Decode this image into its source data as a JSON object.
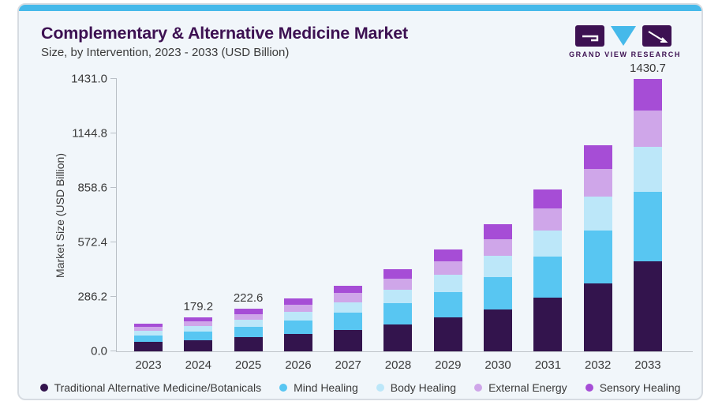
{
  "header": {
    "title": "Complementary & Alternative Medicine Market",
    "subtitle": "Size, by Intervention, 2023 - 2033 (USD Billion)",
    "logo_text": "GRAND VIEW RESEARCH"
  },
  "colors": {
    "accent_blue": "#45b9ea",
    "title_purple": "#3d1152",
    "card_background": "#f1f6fa",
    "card_border": "#d7dce2",
    "axis_line": "#b9bfc6",
    "text_gray": "#3a3a3a"
  },
  "chart_data": {
    "type": "bar",
    "stacked": true,
    "title": "Complementary & Alternative Medicine Market",
    "subtitle": "Size, by Intervention, 2023 - 2033 (USD Billion)",
    "xlabel": "",
    "ylabel": "Market Size (USD Billion)",
    "ylim": [
      0,
      1431
    ],
    "yticks": [
      0,
      286.2,
      572.4,
      858.6,
      1144.8,
      1431
    ],
    "grid": false,
    "legend_position": "bottom",
    "categories": [
      "2023",
      "2024",
      "2025",
      "2026",
      "2027",
      "2028",
      "2029",
      "2030",
      "2031",
      "2032",
      "2033"
    ],
    "totals": [
      144.7,
      179.2,
      222.6,
      277.0,
      345.0,
      430.0,
      535.0,
      667.0,
      849.0,
      1082.0,
      1430.7
    ],
    "bar_labels": {
      "2024": "179.2",
      "2025": "222.6",
      "2033": "1430.7"
    },
    "series": [
      {
        "name": "Traditional Alternative Medicine/Botanicals",
        "color": "#33144d",
        "values": [
          47.8,
          59.1,
          73.5,
          91.4,
          113.9,
          141.9,
          176.6,
          220.1,
          280.2,
          357.1,
          472.1
        ]
      },
      {
        "name": "Mind Healing",
        "color": "#58c6f2",
        "values": [
          36.9,
          45.7,
          56.8,
          70.6,
          88.0,
          109.6,
          136.4,
          170.1,
          216.5,
          275.9,
          364.8
        ]
      },
      {
        "name": "Body Healing",
        "color": "#bce7f9",
        "values": [
          23.9,
          29.6,
          36.7,
          45.7,
          56.9,
          71.0,
          88.3,
          110.1,
          140.1,
          178.5,
          236.1
        ]
      },
      {
        "name": "External Energy",
        "color": "#cfa6e9",
        "values": [
          19.5,
          24.2,
          30.1,
          37.4,
          46.6,
          58.0,
          72.2,
          90.0,
          114.6,
          146.1,
          193.1
        ]
      },
      {
        "name": "Sensory Healing",
        "color": "#a64dd6",
        "values": [
          16.6,
          20.6,
          25.5,
          31.9,
          39.6,
          49.5,
          61.5,
          76.7,
          97.6,
          124.4,
          164.6
        ]
      }
    ]
  }
}
